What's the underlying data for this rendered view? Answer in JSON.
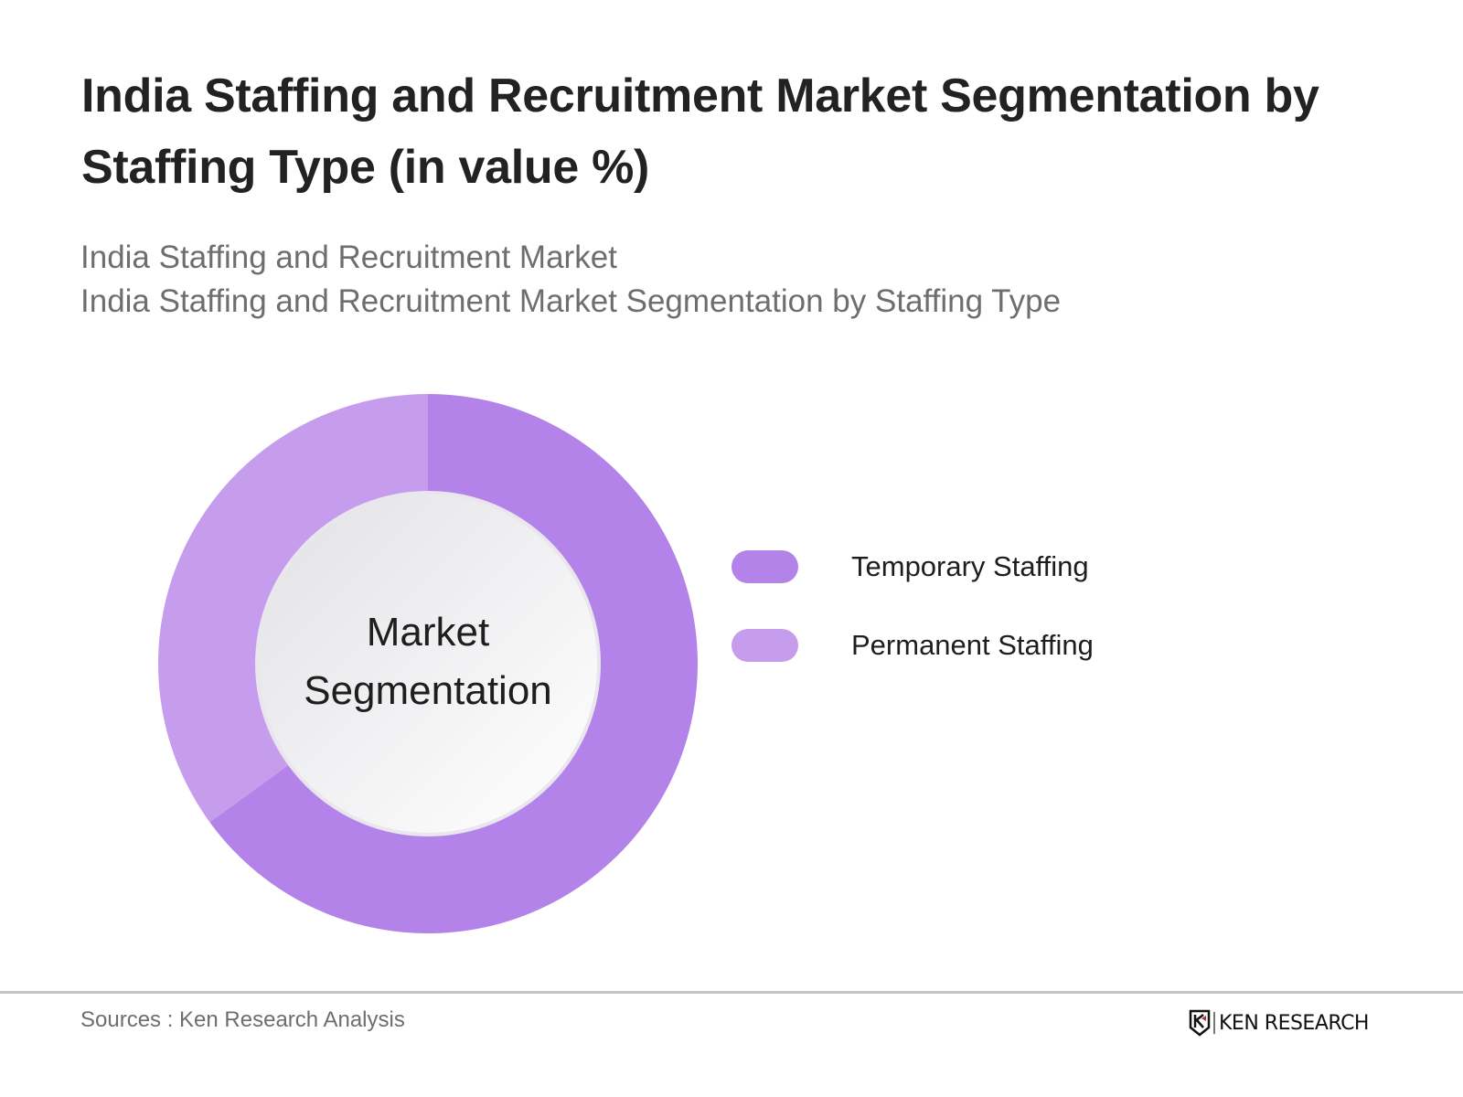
{
  "header": {
    "title": "India Staffing and Recruitment Market Segmentation by Staffing Type (in value %)",
    "subtitle_line1": "India Staffing and Recruitment Market",
    "subtitle_line2": "India Staffing and Recruitment Market Segmentation by Staffing Type"
  },
  "chart": {
    "center_label_line1": "Market",
    "center_label_line2": "Segmentation",
    "legend": [
      {
        "label": "Temporary Staffing",
        "color": "#b383e9"
      },
      {
        "label": "Permanent Staffing",
        "color": "#c69ded"
      }
    ]
  },
  "footer": {
    "sources": "Sources : Ken Research Analysis",
    "logo_text": "KEN RESEARCH",
    "logo_icon": "ken-research-k-shield-icon"
  },
  "chart_data": {
    "type": "pie",
    "variant": "donut",
    "title": "India Staffing and Recruitment Market Segmentation by Staffing Type (in value %)",
    "subtitle": "India Staffing and Recruitment Market Segmentation by Staffing Type",
    "categories": [
      "Temporary Staffing",
      "Permanent Staffing"
    ],
    "values": [
      65,
      35
    ],
    "unit": "%",
    "colors": [
      "#b383e9",
      "#c69ded"
    ],
    "center_text": "Market Segmentation",
    "start_angle": "12 o'clock, clockwise",
    "legend_position": "right",
    "data_labels": false
  }
}
